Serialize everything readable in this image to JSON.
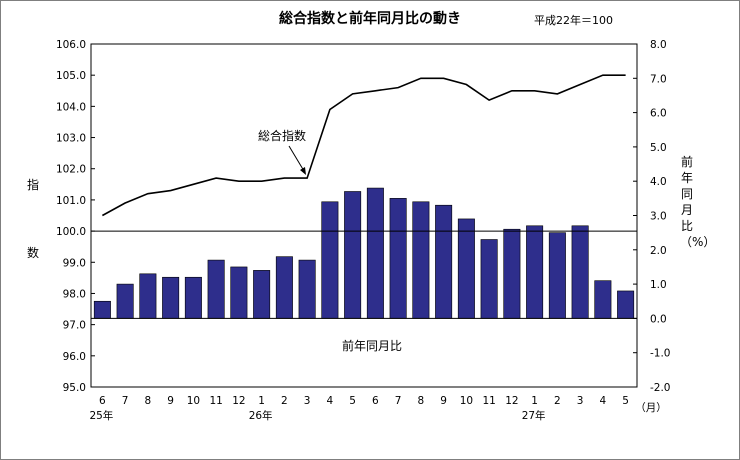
{
  "chart_data": {
    "type": "bar+line",
    "title": "総合指数と前年同月比の動き",
    "base_note": "平成22年＝100",
    "months": [
      "6",
      "7",
      "8",
      "9",
      "10",
      "11",
      "12",
      "1",
      "2",
      "3",
      "4",
      "5",
      "6",
      "7",
      "8",
      "9",
      "10",
      "11",
      "12",
      "1",
      "2",
      "3",
      "4",
      "5"
    ],
    "year_labels": [
      {
        "label": "25年",
        "month_index": 0
      },
      {
        "label": "26年",
        "month_index": 7
      },
      {
        "label": "27年",
        "month_index": 19
      }
    ],
    "month_unit_label": "（月）",
    "left_axis": {
      "label": [
        "指",
        "数"
      ],
      "ylim": [
        95.0,
        106.0
      ],
      "ticks": [
        "95.0",
        "96.0",
        "97.0",
        "98.0",
        "99.0",
        "100.0",
        "101.0",
        "102.0",
        "103.0",
        "104.0",
        "105.0",
        "106.0"
      ],
      "reference_line": 100.0
    },
    "right_axis": {
      "label": [
        "前",
        "年",
        "同",
        "月",
        "比",
        "（%）"
      ],
      "ylim": [
        -2.0,
        8.0
      ],
      "ticks": [
        "-2.0",
        "-1.0",
        "0.0",
        "1.0",
        "2.0",
        "3.0",
        "4.0",
        "5.0",
        "6.0",
        "7.0",
        "8.0"
      ]
    },
    "series": [
      {
        "name": "総合指数",
        "type": "line",
        "axis": "left",
        "color": "#000000",
        "values": [
          100.5,
          100.9,
          101.2,
          101.3,
          101.5,
          101.7,
          101.6,
          101.6,
          101.7,
          101.7,
          103.9,
          104.4,
          104.5,
          104.6,
          104.9,
          104.9,
          104.7,
          104.2,
          104.5,
          104.5,
          104.4,
          104.7,
          105.0,
          105.0
        ]
      },
      {
        "name": "前年同月比",
        "type": "bar",
        "axis": "right",
        "color": "#2e2e8c",
        "values": [
          0.5,
          1.0,
          1.3,
          1.2,
          1.2,
          1.7,
          1.5,
          1.4,
          1.8,
          1.7,
          3.4,
          3.7,
          3.8,
          3.5,
          3.4,
          3.3,
          2.9,
          2.3,
          2.6,
          2.7,
          2.5,
          2.7,
          1.1,
          0.8
        ]
      }
    ],
    "annotations": [
      {
        "text": "総合指数",
        "target": "line"
      },
      {
        "text": "前年同月比",
        "target": "bars"
      }
    ],
    "grid": false
  }
}
